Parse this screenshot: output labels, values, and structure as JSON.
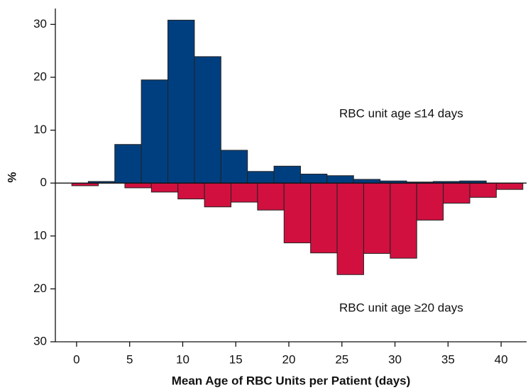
{
  "chart_data": {
    "type": "histogram",
    "xlabel": "Mean Age of RBC Units per Patient (days)",
    "ylabel": "%",
    "xlim": [
      -2,
      42.4
    ],
    "ylim": [
      -30,
      33
    ],
    "xticks": [
      0,
      5,
      10,
      15,
      20,
      25,
      30,
      35,
      40
    ],
    "yticks": [
      {
        "value": -30,
        "label": "30"
      },
      {
        "value": -20,
        "label": "20"
      },
      {
        "value": -10,
        "label": "10"
      },
      0,
      10,
      20,
      30
    ],
    "series": [
      {
        "name": "RBC unit age ≤14 days",
        "color": "#003f7f",
        "bins": [
          1.1,
          3.6,
          6.1,
          8.6,
          11.1,
          13.6,
          16.1,
          18.6,
          21.1,
          23.6,
          26.1,
          28.6,
          31.1,
          33.6,
          36.1,
          38.6
        ],
        "values": [
          0.3,
          7.3,
          19.5,
          30.8,
          23.9,
          6.2,
          2.2,
          3.2,
          1.7,
          1.4,
          0.7,
          0.4,
          0.2,
          0.3,
          0.4
        ]
      },
      {
        "name": "RBC unit age ≥20 days",
        "color": "#d1103f",
        "bins": [
          -0.45,
          2.05,
          4.55,
          7.05,
          9.55,
          12.05,
          14.55,
          17.05,
          19.55,
          22.05,
          24.55,
          27.05,
          29.55,
          32.05,
          34.55,
          37.05,
          39.55,
          42.05
        ],
        "values": [
          -0.5,
          0,
          -0.9,
          -1.7,
          -3.0,
          -4.5,
          -3.6,
          -5.1,
          -11.3,
          -13.2,
          -17.3,
          -13.3,
          -14.2,
          -7.0,
          -3.8,
          -2.7,
          -1.2
        ]
      }
    ]
  }
}
